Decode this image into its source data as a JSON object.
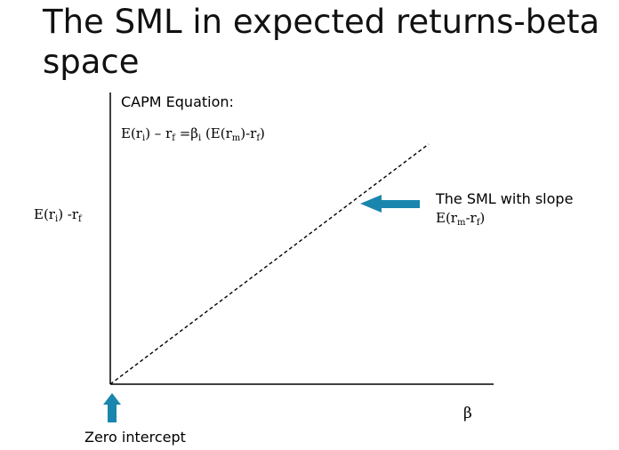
{
  "title": "The SML in expected returns-beta space",
  "capm_heading": "CAPM Equation:",
  "equation": {
    "p1": "E(r",
    "s1": "i",
    "p2": ") – r",
    "s2": "f",
    "p3": " =β",
    "s3": "i",
    "p4": " (E(r",
    "s4": "m",
    "p5": ")-r",
    "s5": "f",
    "p6": ")"
  },
  "y_axis_label": {
    "p1": "E(r",
    "s1": "i",
    "p2": ") -r",
    "s2": "f"
  },
  "x_axis_label": "β",
  "sml_label": {
    "line1": "The SML with slope",
    "p1": "E(r",
    "s1": "m",
    "p2": "-r",
    "s2": "f",
    "p3": ")"
  },
  "intercept_label": "Zero intercept",
  "colors": {
    "arrow": "#1a86ad",
    "axis": "#000000",
    "sml": "#000000"
  }
}
